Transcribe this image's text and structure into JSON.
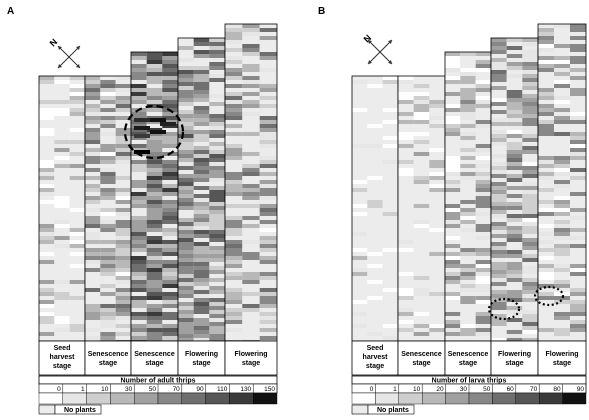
{
  "panels": [
    {
      "letter": "A",
      "stages": [
        "Seed harvest stage",
        "Senescence stage",
        "Senescence stage",
        "Flowering stage",
        "Flowering stage"
      ],
      "legend_title": "Number of adult thrips",
      "legend_ticks": [
        "0",
        "1",
        "10",
        "30",
        "50",
        "70",
        "90",
        "110",
        "130",
        "150"
      ],
      "no_plants_label": "No plants",
      "north_label": "N"
    },
    {
      "letter": "B",
      "stages": [
        "Seed harvest stage",
        "Senescence stage",
        "Senescence stage",
        "Flowering stage",
        "Flowering stage"
      ],
      "legend_title": "Number of larva thrips",
      "legend_ticks": [
        "0",
        "1",
        "10",
        "20",
        "30",
        "50",
        "60",
        "70",
        "80",
        "90"
      ],
      "no_plants_label": "No plants",
      "north_label": "N"
    }
  ],
  "colors": {
    "no_plants": "#ececec",
    "scale": [
      "#ffffff",
      "#e6e6e6",
      "#cfcfcf",
      "#b8b8b8",
      "#a0a0a0",
      "#888888",
      "#6f6f6f",
      "#565656",
      "#3a3a3a",
      "#111111"
    ]
  }
}
